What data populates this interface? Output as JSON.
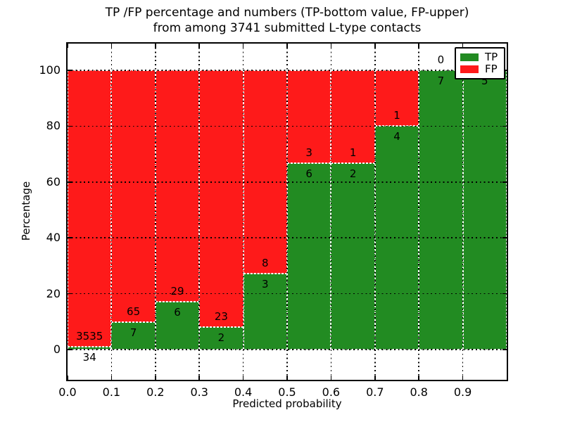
{
  "title": {
    "line1": "TP /FP percentage and numbers (TP-bottom value, FP-upper)",
    "line2": "from among 3741 submitted L-type contacts"
  },
  "axes": {
    "xlabel": "Predicted probability",
    "ylabel": "Percentage"
  },
  "legend": {
    "entries": [
      {
        "label": "TP",
        "color": "#228B22"
      },
      {
        "label": "FP",
        "color": "#fe1a1a"
      }
    ],
    "position": "upper right"
  },
  "chart_data": {
    "type": "bar",
    "stacked": true,
    "normalized": "each bin totals 100%",
    "title": "TP /FP percentage and numbers (TP-bottom value, FP-upper) from among 3741 submitted L-type contacts",
    "xlabel": "Predicted probability",
    "ylabel": "Percentage",
    "total_contacts": 3741,
    "categories": [
      "0.0-0.1",
      "0.1-0.2",
      "0.2-0.3",
      "0.3-0.4",
      "0.4-0.5",
      "0.5-0.6",
      "0.6-0.7",
      "0.7-0.8",
      "0.8-0.9",
      "0.9-1.0"
    ],
    "series": [
      {
        "name": "TP",
        "color": "#228B22",
        "counts": [
          34,
          7,
          6,
          2,
          3,
          6,
          2,
          4,
          7,
          5
        ],
        "percent": [
          0.95,
          9.72,
          17.14,
          8.0,
          27.27,
          66.67,
          66.67,
          80.0,
          100.0,
          100.0
        ]
      },
      {
        "name": "FP",
        "color": "#fe1a1a",
        "counts": [
          3535,
          65,
          29,
          23,
          8,
          3,
          1,
          1,
          0,
          0
        ],
        "percent": [
          99.05,
          90.28,
          82.86,
          92.0,
          72.73,
          33.33,
          33.33,
          20.0,
          0.0,
          0.0
        ]
      }
    ],
    "bar_labels": "FP count printed above TP/FP boundary, TP count printed below it",
    "xticks": [
      "0.0",
      "0.1",
      "0.2",
      "0.3",
      "0.4",
      "0.5",
      "0.6",
      "0.7",
      "0.8",
      "0.9"
    ],
    "yticks": [
      0,
      20,
      40,
      60,
      80,
      100
    ],
    "xlim": [
      0.0,
      1.0
    ],
    "ylim": [
      -10,
      110
    ],
    "grid": "dotted black, both axes, drawn over bars",
    "bar_edge": "white dashed",
    "legend_position": "upper right"
  }
}
